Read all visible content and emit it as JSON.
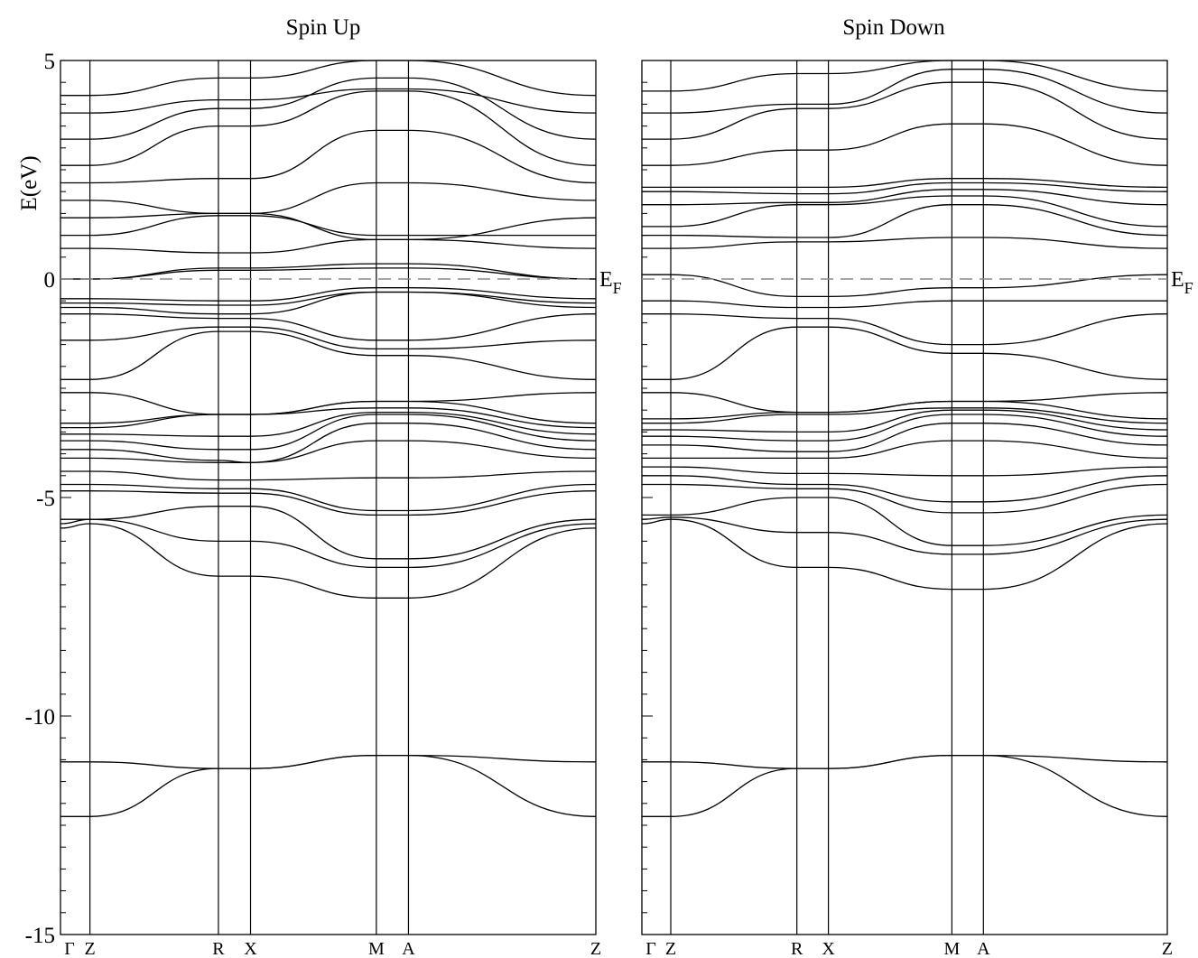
{
  "chart_data": [
    {
      "type": "line",
      "title": "Spin Up",
      "ylabel": "E(eV)",
      "ylim": [
        -15,
        5
      ],
      "yticks": [
        "5",
        "0",
        "-5",
        "-10",
        "-15"
      ],
      "fermi_label": "E",
      "fermi_sub": "F",
      "kpoints": [
        "Γ",
        "Z",
        "R",
        "X",
        "M",
        "A",
        "Z"
      ],
      "kpath": [
        0,
        0.055,
        0.295,
        0.355,
        0.59,
        0.65,
        1.0
      ],
      "series": [
        {
          "values": [
            -12.3,
            -12.3,
            -11.2,
            -11.2,
            -10.9,
            -10.9,
            -12.3
          ]
        },
        {
          "values": [
            -11.05,
            -11.05,
            -11.2,
            -11.2,
            -10.9,
            -10.9,
            -11.05
          ]
        },
        {
          "values": [
            -5.7,
            -5.6,
            -6.8,
            -6.8,
            -7.3,
            -7.3,
            -5.7
          ]
        },
        {
          "values": [
            -5.6,
            -5.5,
            -6.0,
            -6.0,
            -6.6,
            -6.6,
            -5.6
          ]
        },
        {
          "values": [
            -5.5,
            -5.5,
            -5.2,
            -5.2,
            -6.4,
            -6.4,
            -5.5
          ]
        },
        {
          "values": [
            -4.85,
            -4.85,
            -4.9,
            -4.9,
            -5.4,
            -5.4,
            -4.85
          ]
        },
        {
          "values": [
            -4.7,
            -4.7,
            -4.8,
            -4.8,
            -5.3,
            -5.3,
            -4.7
          ]
        },
        {
          "values": [
            -4.4,
            -4.4,
            -4.6,
            -4.6,
            -4.55,
            -4.55,
            -4.4
          ]
        },
        {
          "values": [
            -4.1,
            -4.1,
            -4.2,
            -4.2,
            -3.7,
            -3.7,
            -4.1
          ]
        },
        {
          "values": [
            -3.9,
            -3.9,
            -4.15,
            -4.2,
            -3.3,
            -3.3,
            -3.9
          ]
        },
        {
          "values": [
            -3.7,
            -3.7,
            -3.9,
            -3.9,
            -3.1,
            -3.1,
            -3.7
          ]
        },
        {
          "values": [
            -3.55,
            -3.55,
            -3.6,
            -3.6,
            -3.05,
            -3.05,
            -3.55
          ]
        },
        {
          "values": [
            -3.4,
            -3.4,
            -3.1,
            -3.1,
            -2.95,
            -2.95,
            -3.4
          ]
        },
        {
          "values": [
            -3.3,
            -3.3,
            -3.1,
            -3.1,
            -2.8,
            -2.8,
            -3.3
          ]
        },
        {
          "values": [
            -2.6,
            -2.6,
            -3.1,
            -3.1,
            -2.8,
            -2.8,
            -2.6
          ]
        },
        {
          "values": [
            -2.3,
            -2.3,
            -1.2,
            -1.2,
            -1.75,
            -1.75,
            -2.3
          ]
        },
        {
          "values": [
            -1.4,
            -1.4,
            -1.1,
            -1.1,
            -1.6,
            -1.6,
            -1.4
          ]
        },
        {
          "values": [
            -0.8,
            -0.8,
            -0.9,
            -0.9,
            -1.4,
            -1.4,
            -0.8
          ]
        },
        {
          "values": [
            -0.65,
            -0.65,
            -0.8,
            -0.8,
            -0.3,
            -0.3,
            -0.65
          ]
        },
        {
          "values": [
            -0.55,
            -0.55,
            -0.6,
            -0.6,
            -0.3,
            -0.3,
            -0.55
          ]
        },
        {
          "values": [
            -0.45,
            -0.45,
            -0.5,
            -0.5,
            -0.2,
            -0.2,
            -0.45
          ]
        },
        {
          "values": [
            0.0,
            0.0,
            0.2,
            0.2,
            0.25,
            0.25,
            0.0
          ]
        },
        {
          "values": [
            0.0,
            0.0,
            0.25,
            0.25,
            0.35,
            0.35,
            0.0
          ]
        },
        {
          "values": [
            0.7,
            0.7,
            0.6,
            0.6,
            0.9,
            0.9,
            0.7
          ]
        },
        {
          "values": [
            1.0,
            1.0,
            1.45,
            1.45,
            1.0,
            1.0,
            1.0
          ]
        },
        {
          "values": [
            1.4,
            1.4,
            1.5,
            1.5,
            0.9,
            0.9,
            1.4
          ]
        },
        {
          "values": [
            1.8,
            1.8,
            1.5,
            1.5,
            2.2,
            2.2,
            1.8
          ]
        },
        {
          "values": [
            2.2,
            2.2,
            2.3,
            2.3,
            3.4,
            3.4,
            2.2
          ]
        },
        {
          "values": [
            2.6,
            2.6,
            3.5,
            3.5,
            4.3,
            4.3,
            2.6
          ]
        },
        {
          "values": [
            3.2,
            3.2,
            3.9,
            3.9,
            4.6,
            4.6,
            3.2
          ]
        },
        {
          "values": [
            3.8,
            3.8,
            4.1,
            4.1,
            4.35,
            4.35,
            3.8
          ]
        },
        {
          "values": [
            4.2,
            4.2,
            4.6,
            4.6,
            5.0,
            5.0,
            4.2
          ]
        }
      ]
    },
    {
      "type": "line",
      "title": "Spin Down",
      "ylim": [
        -15,
        5
      ],
      "fermi_label": "E",
      "fermi_sub": "F",
      "kpoints": [
        "Γ",
        "Z",
        "R",
        "X",
        "M",
        "A",
        "Z"
      ],
      "kpath": [
        0,
        0.055,
        0.295,
        0.355,
        0.59,
        0.65,
        1.0
      ],
      "series": [
        {
          "values": [
            -12.3,
            -12.3,
            -11.2,
            -11.2,
            -10.9,
            -10.9,
            -12.3
          ]
        },
        {
          "values": [
            -11.05,
            -11.05,
            -11.2,
            -11.2,
            -10.9,
            -10.9,
            -11.05
          ]
        },
        {
          "values": [
            -5.6,
            -5.5,
            -6.6,
            -6.6,
            -7.1,
            -7.1,
            -5.6
          ]
        },
        {
          "values": [
            -5.5,
            -5.45,
            -5.8,
            -5.8,
            -6.3,
            -6.3,
            -5.5
          ]
        },
        {
          "values": [
            -5.4,
            -5.4,
            -5.0,
            -5.0,
            -6.1,
            -6.1,
            -5.4
          ]
        },
        {
          "values": [
            -4.7,
            -4.7,
            -4.8,
            -4.8,
            -5.35,
            -5.35,
            -4.7
          ]
        },
        {
          "values": [
            -4.5,
            -4.5,
            -4.7,
            -4.7,
            -5.1,
            -5.1,
            -4.5
          ]
        },
        {
          "values": [
            -4.3,
            -4.3,
            -4.45,
            -4.45,
            -4.5,
            -4.5,
            -4.3
          ]
        },
        {
          "values": [
            -4.1,
            -4.1,
            -4.1,
            -4.1,
            -3.7,
            -3.7,
            -4.1
          ]
        },
        {
          "values": [
            -3.8,
            -3.8,
            -3.95,
            -3.95,
            -3.3,
            -3.3,
            -3.8
          ]
        },
        {
          "values": [
            -3.6,
            -3.6,
            -3.7,
            -3.7,
            -3.1,
            -3.1,
            -3.6
          ]
        },
        {
          "values": [
            -3.45,
            -3.45,
            -3.5,
            -3.5,
            -3.0,
            -3.0,
            -3.45
          ]
        },
        {
          "values": [
            -3.3,
            -3.3,
            -3.1,
            -3.1,
            -2.95,
            -2.95,
            -3.3
          ]
        },
        {
          "values": [
            -3.2,
            -3.2,
            -3.05,
            -3.05,
            -2.8,
            -2.8,
            -3.2
          ]
        },
        {
          "values": [
            -2.6,
            -2.6,
            -3.05,
            -3.05,
            -2.8,
            -2.8,
            -2.6
          ]
        },
        {
          "values": [
            -2.3,
            -2.3,
            -1.1,
            -1.1,
            -1.7,
            -1.7,
            -2.3
          ]
        },
        {
          "values": [
            -0.8,
            -0.8,
            -0.9,
            -0.9,
            -1.5,
            -1.5,
            -0.8
          ]
        },
        {
          "values": [
            -0.5,
            -0.5,
            -0.65,
            -0.65,
            -0.5,
            -0.5,
            -0.5
          ]
        },
        {
          "values": [
            0.1,
            0.1,
            -0.4,
            -0.4,
            -0.2,
            -0.2,
            0.1
          ]
        },
        {
          "values": [
            0.7,
            0.7,
            0.85,
            0.85,
            0.95,
            0.95,
            0.7
          ]
        },
        {
          "values": [
            1.0,
            1.0,
            0.95,
            0.95,
            1.7,
            1.7,
            1.0
          ]
        },
        {
          "values": [
            1.2,
            1.2,
            1.7,
            1.7,
            1.9,
            1.9,
            1.2
          ]
        },
        {
          "values": [
            1.7,
            1.7,
            1.75,
            1.75,
            2.05,
            2.05,
            1.7
          ]
        },
        {
          "values": [
            2.0,
            2.0,
            1.95,
            1.95,
            2.2,
            2.2,
            2.0
          ]
        },
        {
          "values": [
            2.1,
            2.1,
            2.1,
            2.1,
            2.3,
            2.3,
            2.1
          ]
        },
        {
          "values": [
            2.6,
            2.6,
            2.95,
            2.95,
            3.55,
            3.55,
            2.6
          ]
        },
        {
          "values": [
            3.2,
            3.2,
            3.9,
            3.9,
            4.5,
            4.5,
            3.2
          ]
        },
        {
          "values": [
            3.8,
            3.8,
            4.0,
            4.0,
            4.8,
            4.8,
            3.8
          ]
        },
        {
          "values": [
            4.3,
            4.3,
            4.7,
            4.7,
            5.0,
            5.0,
            4.3
          ]
        }
      ]
    }
  ]
}
